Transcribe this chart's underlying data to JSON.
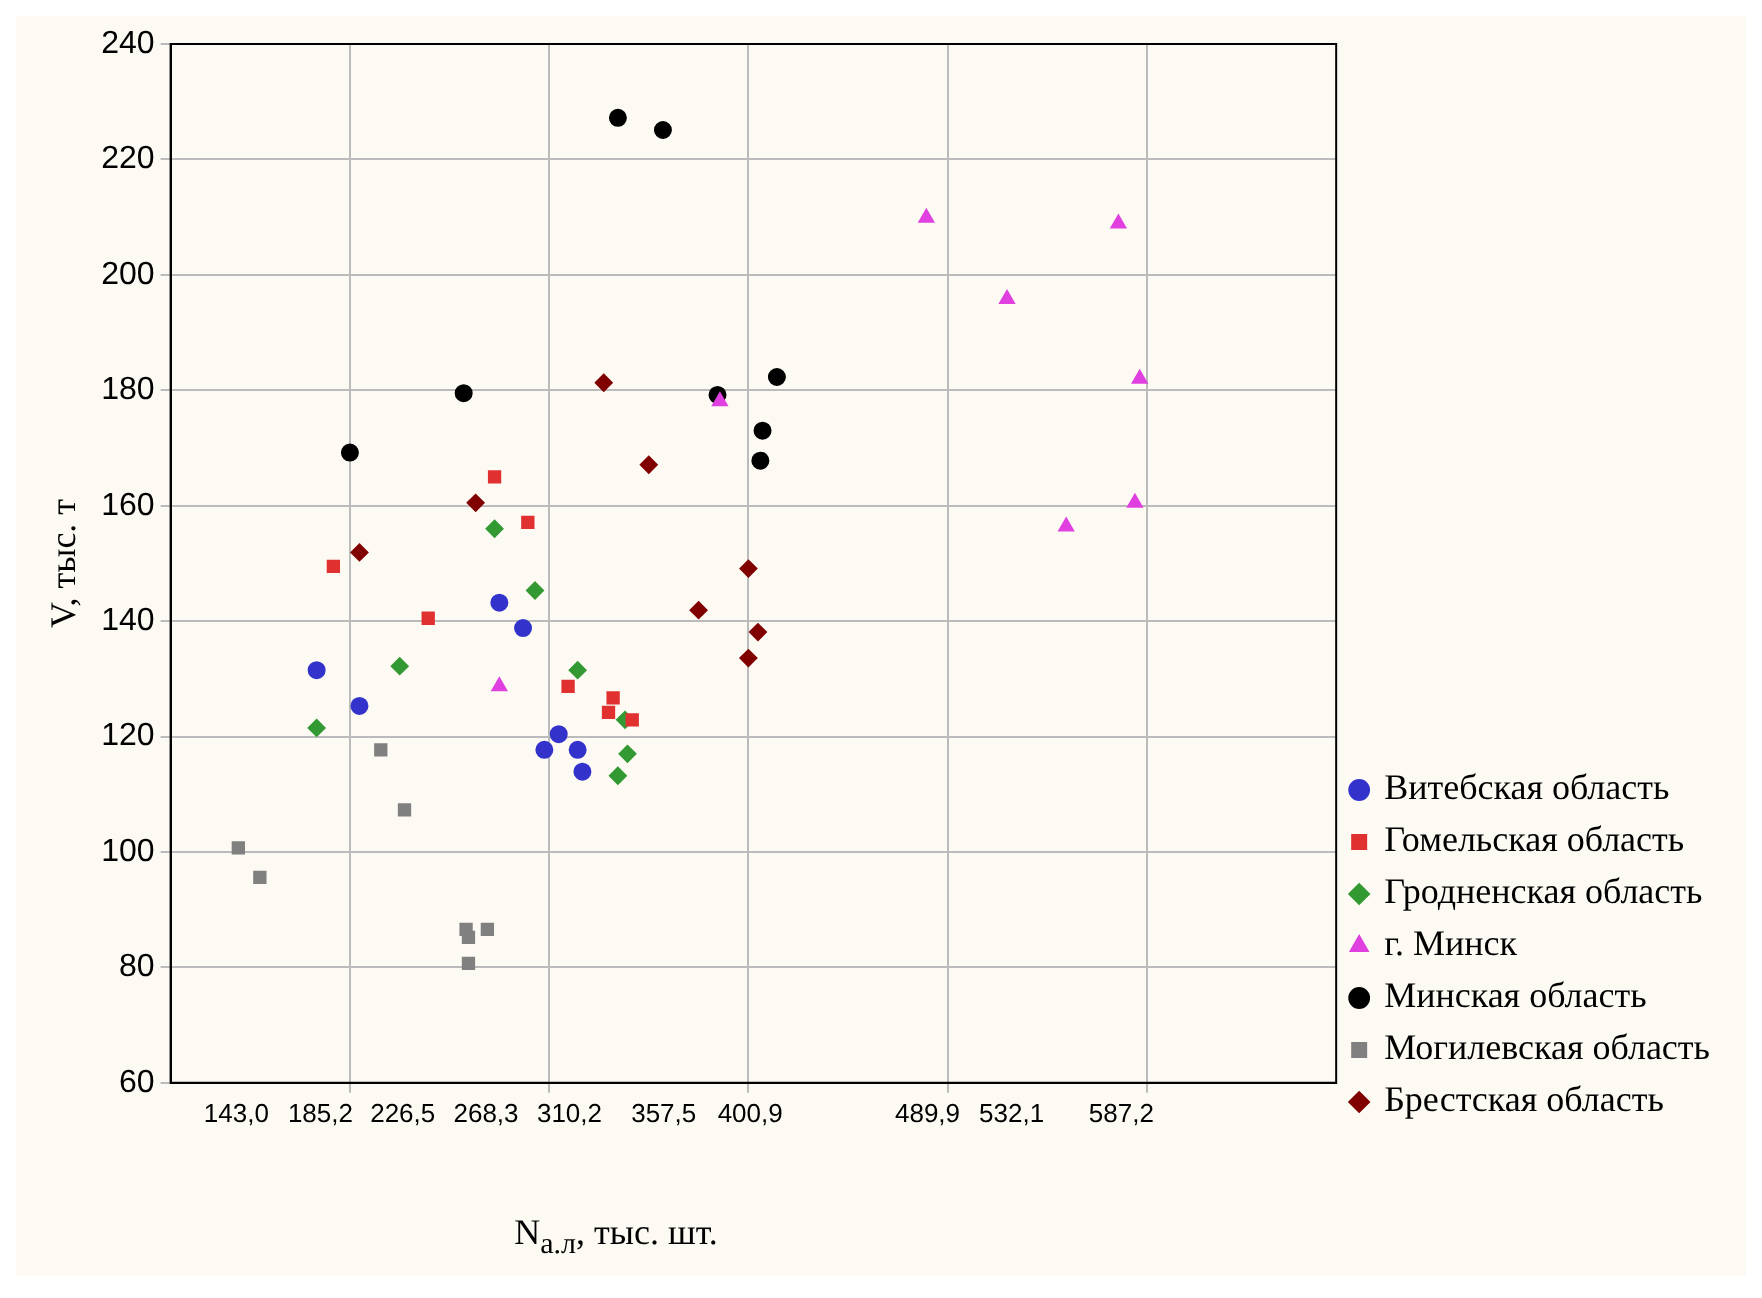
{
  "chart_data": {
    "type": "scatter",
    "xlabel": "N$_{а.л}$, тыс. шт.",
    "ylabel": "V, тыс. т",
    "xlim": [
      110,
      695
    ],
    "ylim": [
      60,
      240
    ],
    "xticks": [
      {
        "value": 143,
        "label": "143,0"
      },
      {
        "value": 185.2,
        "label": "185,2"
      },
      {
        "value": 200,
        "label": null
      },
      {
        "value": 226.5,
        "label": "226,5"
      },
      {
        "value": 268.3,
        "label": "268,3"
      },
      {
        "value": 300,
        "label": null
      },
      {
        "value": 310.2,
        "label": "310,2"
      },
      {
        "value": 357.5,
        "label": "357,5"
      },
      {
        "value": 400,
        "label": null
      },
      {
        "value": 400.9,
        "label": "400,9"
      },
      {
        "value": 489.9,
        "label": "489,9"
      },
      {
        "value": 500,
        "label": null
      },
      {
        "value": 532.1,
        "label": "532,1"
      },
      {
        "value": 587.2,
        "label": "587,2"
      },
      {
        "value": 600,
        "label": null
      }
    ],
    "yticks": [
      60,
      80,
      100,
      120,
      140,
      160,
      180,
      200,
      220,
      240
    ],
    "grid": true,
    "legend": "bottom right",
    "series": [
      {
        "name": "Витебская область",
        "color": "#3333cc",
        "marker": "circle",
        "x": [
          183.3,
          204.8,
          275,
          286.9,
          304.8,
          297.6,
          314.3,
          316.7
        ],
        "values": [
          131.5,
          125.3,
          143.2,
          138.8,
          120.4,
          117.7,
          117.7,
          113.9
        ]
      },
      {
        "name": "Гомельская область",
        "color": "#e03030",
        "marker": "square",
        "x": [
          272.6,
          289.3,
          191.7,
          239.3,
          309.5,
          332.1,
          329.8,
          341.7
        ],
        "values": [
          165.0,
          157.1,
          149.5,
          140.5,
          128.7,
          126.7,
          124.2,
          122.9
        ]
      },
      {
        "name": "Гродненская область",
        "color": "#339933",
        "marker": "diamond",
        "x": [
          272.6,
          292.9,
          225,
          314.3,
          183.3,
          338.1,
          339.3,
          334.5
        ],
        "values": [
          156.0,
          145.3,
          132.2,
          131.5,
          121.5,
          122.9,
          117.0,
          113.2
        ]
      },
      {
        "name": "г. Минск",
        "color": "#e040e0",
        "marker": "triangle",
        "x": [
          489.3,
          529.8,
          585.7,
          596.4,
          594,
          559.5,
          385.7,
          275
        ],
        "values": [
          209.9,
          195.8,
          208.9,
          182.0,
          160.5,
          156.4,
          178.1,
          128.7
        ]
      },
      {
        "name": "Минская область",
        "color": "#000000",
        "marker": "circle",
        "x": [
          334.5,
          357.1,
          257.1,
          200,
          384.5,
          414.3,
          407.1,
          406
        ],
        "values": [
          227.2,
          225.1,
          179.5,
          169.2,
          179.2,
          182.3,
          173.0,
          167.8
        ]
      },
      {
        "name": "Могилевская область",
        "color": "#808080",
        "marker": "square",
        "x": [
          144,
          154.8,
          215.5,
          227.4,
          258.3,
          269,
          259.5,
          259.5
        ],
        "values": [
          100.7,
          95.6,
          117.7,
          107.3,
          86.6,
          86.6,
          85.2,
          80.7
        ]
      },
      {
        "name": "Брестская область",
        "color": "#800000",
        "marker": "diamond",
        "x": [
          327.4,
          350,
          263.1,
          204.8,
          400,
          375,
          404.8,
          400
        ],
        "values": [
          181.3,
          167.1,
          160.5,
          151.9,
          149.1,
          141.9,
          138.1,
          133.6
        ]
      }
    ]
  }
}
